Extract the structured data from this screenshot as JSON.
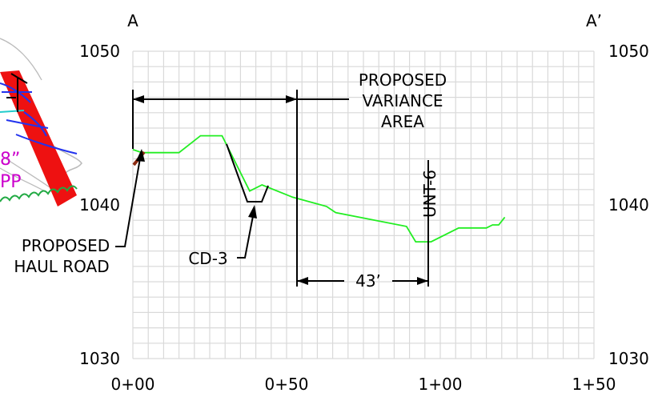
{
  "section": {
    "left_label": "A",
    "right_label": "A’"
  },
  "elevation_axis": {
    "min": 1030,
    "max": 1050,
    "ticks_left": [
      "1050",
      "1040",
      "1030"
    ],
    "ticks_right": [
      "1050",
      "1040",
      "1030"
    ]
  },
  "station_axis": {
    "min": 0,
    "max": 150,
    "ticks": [
      "0+00",
      "0+50",
      "1+00",
      "1+50"
    ]
  },
  "grid": true,
  "annotations": {
    "proposed_variance_area": [
      "PROPOSED",
      "VARIANCE",
      "AREA"
    ],
    "proposed_haul_road": [
      "PROPOSED",
      "HAUL ROAD"
    ],
    "cd3": "CD-3",
    "unt6": "UNT-6",
    "distance": "43’"
  },
  "plan_inset_text": [
    "8”",
    "PP"
  ],
  "colors": {
    "ground_profile": "#22ee22",
    "grid": "#d9d9d9",
    "inset_red": "#ee1111",
    "inset_blue": "#2233ee",
    "inset_magenta": "#cc00cc",
    "inset_green": "#22aa44",
    "haul_road": "#8b2a10"
  },
  "ground_profile": [
    [
      0,
      1043.6
    ],
    [
      3,
      1043.4
    ],
    [
      15,
      1043.4
    ],
    [
      22,
      1044.5
    ],
    [
      29,
      1044.5
    ],
    [
      38,
      1040.9
    ],
    [
      42,
      1041.3
    ],
    [
      52,
      1040.5
    ],
    [
      63,
      1039.9
    ],
    [
      66,
      1039.5
    ],
    [
      89,
      1038.6
    ],
    [
      92,
      1037.6
    ],
    [
      97,
      1037.6
    ],
    [
      106,
      1038.5
    ],
    [
      115,
      1038.5
    ],
    [
      117,
      1038.7
    ],
    [
      119,
      1038.7
    ],
    [
      121,
      1039.2
    ]
  ]
}
